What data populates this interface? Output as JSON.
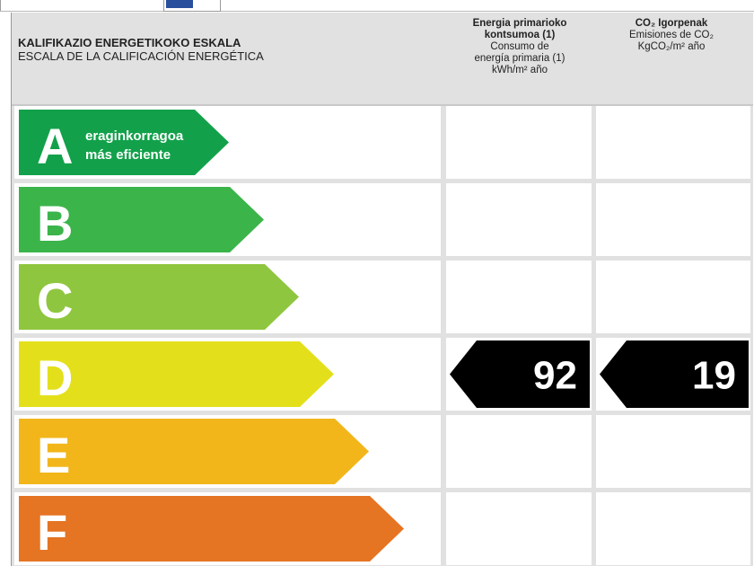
{
  "header": {
    "title_eu": "KALIFIKAZIO ENERGETIKOKO ESKALA",
    "title_es": "ESCALA DE LA CALIFICACIÓN ENERGÉTICA"
  },
  "columns": {
    "energy": {
      "line1": "Energia primarioko",
      "line2": "kontsumoa (1)",
      "line3": "Consumo de",
      "line4": "energía primaria (1)",
      "line5": "kWh/m² año"
    },
    "co2": {
      "line1": "CO₂ Igorpenak",
      "line2": "Emisiones de CO₂",
      "line3": "KgCO₂/m² año"
    }
  },
  "chart_data": {
    "type": "table",
    "classes": [
      {
        "letter": "A",
        "color": "#12a14a",
        "label_eu": "eraginkorragoa",
        "label_es": "más eficiente"
      },
      {
        "letter": "B",
        "color": "#3bb44a"
      },
      {
        "letter": "C",
        "color": "#8fc63f"
      },
      {
        "letter": "D",
        "color": "#e3e01b"
      },
      {
        "letter": "E",
        "color": "#f2b61b"
      },
      {
        "letter": "F",
        "color": "#e57423"
      }
    ],
    "rating": {
      "class": "D",
      "energy_value": "92",
      "co2_value": "19"
    },
    "marker_color": "#000000"
  }
}
